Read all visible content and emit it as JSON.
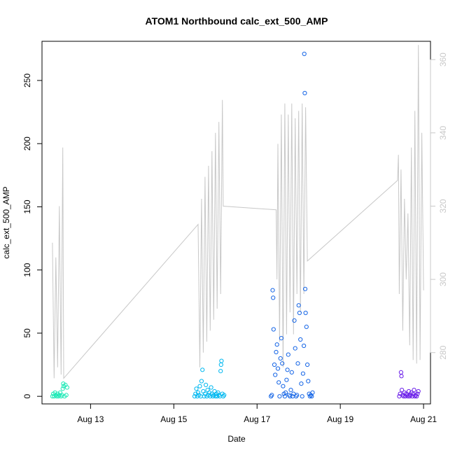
{
  "chart_data": {
    "type": "scatter",
    "title": "ATOM1 Northbound calc_ext_500_AMP",
    "xlabel": "Date",
    "ylabel": "calc_ext_500_AMP",
    "xlim": [
      "2023-08-11 20:00",
      "2023-08-21 04:00"
    ],
    "ylim": [
      -6,
      281
    ],
    "y2lim": [
      266,
      365
    ],
    "x_ticks": [
      {
        "date": "2023-08-13",
        "label": "Aug 13"
      },
      {
        "date": "2023-08-15",
        "label": "Aug 15"
      },
      {
        "date": "2023-08-17",
        "label": "Aug 17"
      },
      {
        "date": "2023-08-19",
        "label": "Aug 19"
      },
      {
        "date": "2023-08-21",
        "label": "Aug 21"
      }
    ],
    "y_ticks": [
      "0",
      "50",
      "100",
      "150",
      "200",
      "250"
    ],
    "y2_ticks": [
      "280",
      "300",
      "320",
      "340",
      "360"
    ],
    "grid": false,
    "scatter_clusters": [
      {
        "color": "#1de9b6",
        "points": [
          [
            "2023-08-12 02:00",
            0
          ],
          [
            "2023-08-12 02:30",
            2
          ],
          [
            "2023-08-12 03:00",
            0
          ],
          [
            "2023-08-12 03:30",
            3
          ],
          [
            "2023-08-12 04:00",
            1
          ],
          [
            "2023-08-12 04:30",
            0
          ],
          [
            "2023-08-12 05:00",
            2
          ],
          [
            "2023-08-12 05:30",
            0
          ],
          [
            "2023-08-12 06:00",
            1
          ],
          [
            "2023-08-12 06:30",
            3
          ],
          [
            "2023-08-12 07:00",
            0
          ],
          [
            "2023-08-12 07:30",
            1
          ],
          [
            "2023-08-12 08:00",
            6
          ],
          [
            "2023-08-12 08:15",
            10
          ],
          [
            "2023-08-12 08:30",
            8
          ],
          [
            "2023-08-12 09:00",
            0
          ],
          [
            "2023-08-12 09:30",
            9
          ],
          [
            "2023-08-12 10:00",
            1
          ],
          [
            "2023-08-12 10:30",
            7
          ]
        ]
      },
      {
        "color": "#00b8f0",
        "points": [
          [
            "2023-08-15 12:00",
            0
          ],
          [
            "2023-08-15 12:30",
            2
          ],
          [
            "2023-08-15 13:00",
            6
          ],
          [
            "2023-08-15 13:30",
            0
          ],
          [
            "2023-08-15 14:00",
            3
          ],
          [
            "2023-08-15 14:30",
            1
          ],
          [
            "2023-08-15 15:00",
            8
          ],
          [
            "2023-08-15 15:30",
            0
          ],
          [
            "2023-08-15 16:00",
            12
          ],
          [
            "2023-08-15 16:30",
            21
          ],
          [
            "2023-08-15 17:00",
            4
          ],
          [
            "2023-08-15 17:30",
            0
          ],
          [
            "2023-08-15 18:00",
            2
          ],
          [
            "2023-08-15 18:30",
            9
          ],
          [
            "2023-08-15 19:00",
            0
          ],
          [
            "2023-08-15 19:30",
            5
          ],
          [
            "2023-08-15 20:00",
            1
          ],
          [
            "2023-08-15 20:30",
            3
          ],
          [
            "2023-08-15 21:00",
            0
          ],
          [
            "2023-08-15 21:30",
            7
          ],
          [
            "2023-08-15 22:00",
            2
          ],
          [
            "2023-08-15 22:30",
            0
          ],
          [
            "2023-08-15 23:00",
            1
          ],
          [
            "2023-08-15 23:30",
            4
          ],
          [
            "2023-08-16 00:00",
            0
          ],
          [
            "2023-08-16 00:30",
            2
          ],
          [
            "2023-08-16 01:00",
            0
          ],
          [
            "2023-08-16 01:30",
            3
          ],
          [
            "2023-08-16 02:00",
            1
          ],
          [
            "2023-08-16 02:30",
            0
          ],
          [
            "2023-08-16 03:00",
            20
          ],
          [
            "2023-08-16 03:15",
            25
          ],
          [
            "2023-08-16 03:30",
            28
          ],
          [
            "2023-08-16 04:00",
            2
          ],
          [
            "2023-08-16 04:30",
            0
          ],
          [
            "2023-08-16 05:00",
            1
          ]
        ]
      },
      {
        "color": "#1565e6",
        "points": [
          [
            "2023-08-17 08:00",
            0
          ],
          [
            "2023-08-17 08:30",
            1
          ],
          [
            "2023-08-17 09:00",
            84
          ],
          [
            "2023-08-17 09:15",
            78
          ],
          [
            "2023-08-17 09:30",
            53
          ],
          [
            "2023-08-17 10:00",
            25
          ],
          [
            "2023-08-17 10:30",
            17
          ],
          [
            "2023-08-17 11:00",
            35
          ],
          [
            "2023-08-17 11:30",
            41
          ],
          [
            "2023-08-17 12:00",
            22
          ],
          [
            "2023-08-17 12:30",
            11
          ],
          [
            "2023-08-17 13:00",
            0
          ],
          [
            "2023-08-17 13:30",
            30
          ],
          [
            "2023-08-17 14:00",
            46
          ],
          [
            "2023-08-17 14:30",
            26
          ],
          [
            "2023-08-17 15:00",
            8
          ],
          [
            "2023-08-17 15:30",
            2
          ],
          [
            "2023-08-17 16:00",
            0
          ],
          [
            "2023-08-17 16:30",
            3
          ],
          [
            "2023-08-17 17:00",
            13
          ],
          [
            "2023-08-17 17:30",
            21
          ],
          [
            "2023-08-17 18:00",
            33
          ],
          [
            "2023-08-17 18:30",
            1
          ],
          [
            "2023-08-17 19:00",
            0
          ],
          [
            "2023-08-17 19:30",
            5
          ],
          [
            "2023-08-17 20:00",
            19
          ],
          [
            "2023-08-17 20:30",
            0
          ],
          [
            "2023-08-17 21:00",
            2
          ],
          [
            "2023-08-17 21:30",
            60
          ],
          [
            "2023-08-17 22:00",
            38
          ],
          [
            "2023-08-17 22:30",
            0
          ],
          [
            "2023-08-17 23:00",
            1
          ],
          [
            "2023-08-17 23:30",
            26
          ],
          [
            "2023-08-18 00:00",
            72
          ],
          [
            "2023-08-18 00:30",
            66
          ],
          [
            "2023-08-18 01:00",
            45
          ],
          [
            "2023-08-18 01:30",
            10
          ],
          [
            "2023-08-18 02:00",
            0
          ],
          [
            "2023-08-18 02:30",
            18
          ],
          [
            "2023-08-18 03:00",
            40
          ],
          [
            "2023-08-18 03:15",
            271
          ],
          [
            "2023-08-18 03:30",
            240
          ],
          [
            "2023-08-18 03:45",
            85
          ],
          [
            "2023-08-18 04:00",
            66
          ],
          [
            "2023-08-18 04:30",
            55
          ],
          [
            "2023-08-18 05:00",
            25
          ],
          [
            "2023-08-18 05:30",
            12
          ],
          [
            "2023-08-18 06:00",
            2
          ],
          [
            "2023-08-18 06:30",
            0
          ],
          [
            "2023-08-18 07:00",
            1
          ],
          [
            "2023-08-18 07:30",
            0
          ],
          [
            "2023-08-18 08:00",
            3
          ]
        ]
      },
      {
        "color": "#6a1de9",
        "points": [
          [
            "2023-08-20 10:00",
            0
          ],
          [
            "2023-08-20 10:30",
            2
          ],
          [
            "2023-08-20 11:00",
            19
          ],
          [
            "2023-08-20 11:15",
            16
          ],
          [
            "2023-08-20 11:30",
            5
          ],
          [
            "2023-08-20 12:00",
            1
          ],
          [
            "2023-08-20 12:30",
            0
          ],
          [
            "2023-08-20 13:00",
            3
          ],
          [
            "2023-08-20 13:30",
            0
          ],
          [
            "2023-08-20 14:00",
            2
          ],
          [
            "2023-08-20 14:30",
            1
          ],
          [
            "2023-08-20 15:00",
            0
          ],
          [
            "2023-08-20 15:30",
            4
          ],
          [
            "2023-08-20 16:00",
            0
          ],
          [
            "2023-08-20 16:30",
            1
          ],
          [
            "2023-08-20 17:00",
            3
          ],
          [
            "2023-08-20 17:30",
            0
          ],
          [
            "2023-08-20 18:00",
            2
          ],
          [
            "2023-08-20 18:30",
            5
          ],
          [
            "2023-08-20 19:00",
            0
          ],
          [
            "2023-08-20 19:30",
            1
          ],
          [
            "2023-08-20 20:00",
            0
          ],
          [
            "2023-08-20 20:30",
            2
          ],
          [
            "2023-08-20 21:00",
            4
          ]
        ]
      }
    ],
    "secondary_line": {
      "color": "#c8c8c8",
      "points": [
        [
          "2023-08-12 02:00",
          310
        ],
        [
          "2023-08-12 03:00",
          273
        ],
        [
          "2023-08-12 04:00",
          306
        ],
        [
          "2023-08-12 05:00",
          276
        ],
        [
          "2023-08-12 06:00",
          320
        ],
        [
          "2023-08-12 07:00",
          274
        ],
        [
          "2023-08-12 08:00",
          336
        ],
        [
          "2023-08-12 08:30",
          273
        ],
        [
          "2023-08-15 14:00",
          315
        ],
        [
          "2023-08-15 15:00",
          276
        ],
        [
          "2023-08-15 16:00",
          322
        ],
        [
          "2023-08-15 17:00",
          280
        ],
        [
          "2023-08-15 18:00",
          328
        ],
        [
          "2023-08-15 19:00",
          283
        ],
        [
          "2023-08-15 20:00",
          331
        ],
        [
          "2023-08-15 21:00",
          286
        ],
        [
          "2023-08-15 22:00",
          335
        ],
        [
          "2023-08-15 23:00",
          289
        ],
        [
          "2023-08-16 00:00",
          340
        ],
        [
          "2023-08-16 01:00",
          292
        ],
        [
          "2023-08-16 02:00",
          343
        ],
        [
          "2023-08-16 03:00",
          296
        ],
        [
          "2023-08-16 04:00",
          349
        ],
        [
          "2023-08-16 04:30",
          320
        ],
        [
          "2023-08-17 11:00",
          319
        ],
        [
          "2023-08-17 11:30",
          300
        ],
        [
          "2023-08-17 12:00",
          337
        ],
        [
          "2023-08-17 13:00",
          283
        ],
        [
          "2023-08-17 14:00",
          345
        ],
        [
          "2023-08-17 15:00",
          276
        ],
        [
          "2023-08-17 16:00",
          348
        ],
        [
          "2023-08-17 17:00",
          285
        ],
        [
          "2023-08-17 18:00",
          345
        ],
        [
          "2023-08-17 19:00",
          291
        ],
        [
          "2023-08-17 20:00",
          348
        ],
        [
          "2023-08-17 21:00",
          285
        ],
        [
          "2023-08-17 22:00",
          344
        ],
        [
          "2023-08-17 23:00",
          296
        ],
        [
          "2023-08-18 00:00",
          346
        ],
        [
          "2023-08-18 01:00",
          291
        ],
        [
          "2023-08-18 02:00",
          348
        ],
        [
          "2023-08-18 03:00",
          296
        ],
        [
          "2023-08-18 04:00",
          347
        ],
        [
          "2023-08-18 05:00",
          305
        ],
        [
          "2023-08-20 09:00",
          327
        ],
        [
          "2023-08-20 09:30",
          334
        ],
        [
          "2023-08-20 10:00",
          296
        ],
        [
          "2023-08-20 11:00",
          330
        ],
        [
          "2023-08-20 12:00",
          286
        ],
        [
          "2023-08-20 13:00",
          322
        ],
        [
          "2023-08-20 14:00",
          300
        ],
        [
          "2023-08-20 15:00",
          318
        ],
        [
          "2023-08-20 16:00",
          282
        ],
        [
          "2023-08-20 17:00",
          336
        ],
        [
          "2023-08-20 18:00",
          278
        ],
        [
          "2023-08-20 19:00",
          346
        ],
        [
          "2023-08-20 20:00",
          277
        ],
        [
          "2023-08-20 21:00",
          364
        ],
        [
          "2023-08-20 22:00",
          278
        ],
        [
          "2023-08-20 23:00",
          340
        ],
        [
          "2023-08-21 00:00",
          297
        ]
      ]
    }
  }
}
